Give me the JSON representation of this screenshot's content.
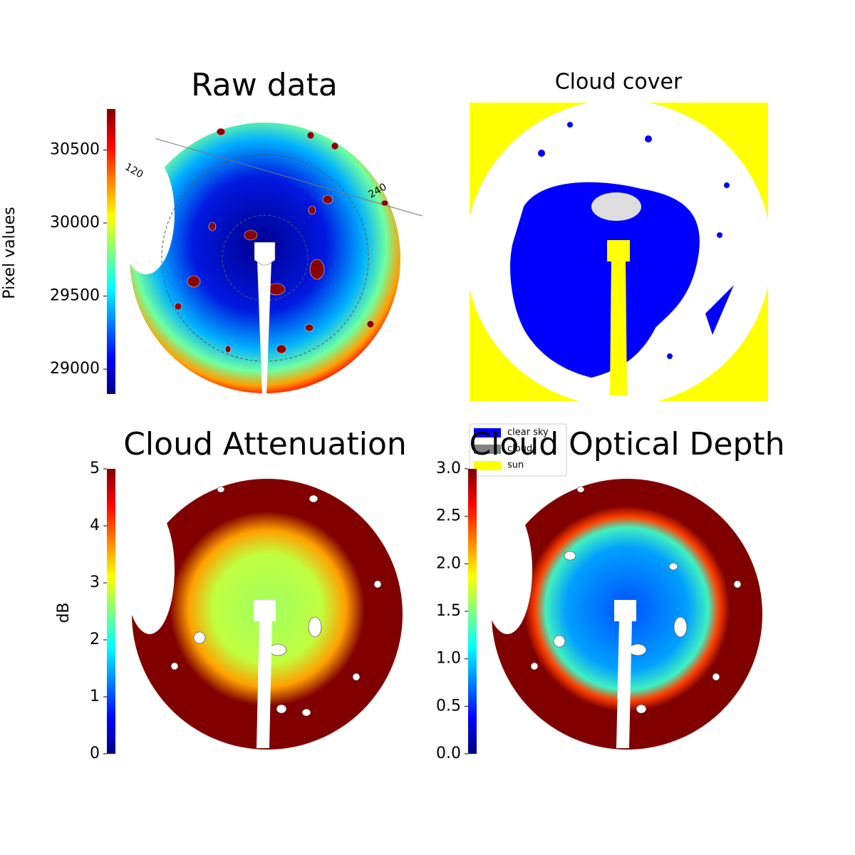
{
  "chart_data": [
    {
      "type": "image",
      "title": "Raw data",
      "colorbar_label": "Pixel values",
      "colormap": "jet",
      "ylim": [
        28830,
        30780
      ],
      "yticks": [
        29000,
        29500,
        30000,
        30500
      ],
      "annotations": [
        "120",
        "240"
      ]
    },
    {
      "type": "mask",
      "title": "Cloud cover",
      "legend": [
        {
          "name": "clear sky",
          "color": "#0000ff"
        },
        {
          "name": "cloud",
          "color": "#808080"
        },
        {
          "name": "sun",
          "color": "#ffff00"
        }
      ]
    },
    {
      "type": "image",
      "title": "Cloud Attenuation",
      "colorbar_label": "dB",
      "colormap": "jet",
      "ylim": [
        0,
        5
      ],
      "yticks": [
        0,
        1,
        2,
        3,
        4,
        5
      ]
    },
    {
      "type": "image",
      "title": "Cloud Optical Depth",
      "colormap": "jet",
      "ylim": [
        0,
        3
      ],
      "yticks": [
        {
          "value": 0,
          "label": "0.0"
        },
        0.5,
        {
          "value": 1,
          "label": "1.0"
        },
        1.5,
        {
          "value": 2,
          "label": "2.0"
        },
        2.5,
        {
          "value": 3,
          "label": "3.0"
        }
      ]
    }
  ]
}
